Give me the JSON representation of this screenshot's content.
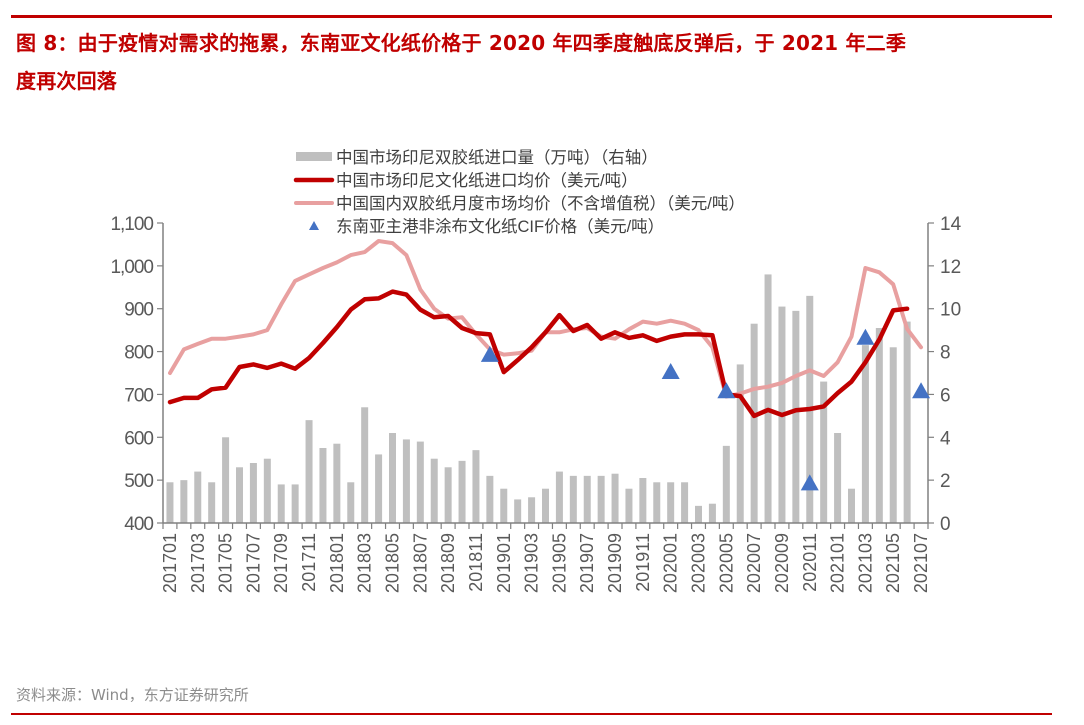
{
  "header": {
    "title_line1": "图 8：由于疫情对需求的拖累，东南亚文化纸价格于 2020 年四季度触底反弹后，于 2021 年二季",
    "title_line2": "度再次回落"
  },
  "footer": {
    "source": "资料来源：Wind，东方证券研究所"
  },
  "colors": {
    "accent": "#c00000",
    "bar": "#bfbfbf",
    "import_price_line": "#c00000",
    "domestic_price_line": "#e8a0a0",
    "cif_marker": "#4472c4",
    "axis": "#808080",
    "tick_text": "#595959"
  },
  "chart_data": {
    "type": "bar+line",
    "title": "",
    "xlabel": "",
    "ylabel_left": "美元/吨",
    "ylabel_right": "万吨",
    "ylim_left": [
      400,
      1100
    ],
    "ylim_right": [
      0,
      14
    ],
    "yticks_left": [
      "1,100",
      "1,000",
      "900",
      "800",
      "700",
      "600",
      "500",
      "400"
    ],
    "yticks_right": [
      "14",
      "12",
      "10",
      "8",
      "6",
      "4",
      "2",
      "0"
    ],
    "grid": false,
    "legend_position": "top-center",
    "x": [
      "201701",
      "201702",
      "201703",
      "201704",
      "201705",
      "201706",
      "201707",
      "201708",
      "201709",
      "201710",
      "201711",
      "201712",
      "201801",
      "201802",
      "201803",
      "201804",
      "201805",
      "201806",
      "201807",
      "201808",
      "201809",
      "201810",
      "201811",
      "201812",
      "201901",
      "201902",
      "201903",
      "201904",
      "201905",
      "201906",
      "201907",
      "201908",
      "201909",
      "201910",
      "201911",
      "201912",
      "202001",
      "202002",
      "202003",
      "202004",
      "202005",
      "202006",
      "202007",
      "202008",
      "202009",
      "202010",
      "202011",
      "202012",
      "202101",
      "202102",
      "202103",
      "202104",
      "202105",
      "202106",
      "202107"
    ],
    "xtick_labels": [
      "201701",
      "201703",
      "201705",
      "201707",
      "201709",
      "201711",
      "201801",
      "201803",
      "201805",
      "201807",
      "201809",
      "201811",
      "201901",
      "201903",
      "201905",
      "201907",
      "201909",
      "201911",
      "202001",
      "202003",
      "202005",
      "202007",
      "202009",
      "202011",
      "202101",
      "202103",
      "202105",
      "202107"
    ],
    "series": [
      {
        "name": "中国市场印尼双胶纸进口量（万吨）（右轴）",
        "type": "bar",
        "axis": "right",
        "values": [
          1.9,
          2.0,
          2.4,
          1.9,
          4.0,
          2.6,
          2.8,
          3.0,
          1.8,
          1.8,
          4.8,
          3.5,
          3.7,
          1.9,
          5.4,
          3.2,
          4.2,
          3.9,
          3.8,
          3.0,
          2.6,
          2.9,
          3.4,
          2.2,
          1.6,
          1.1,
          1.2,
          1.6,
          2.4,
          2.2,
          2.2,
          2.2,
          2.3,
          1.6,
          2.1,
          1.9,
          1.9,
          1.9,
          0.8,
          0.9,
          3.6,
          7.4,
          9.3,
          11.6,
          10.1,
          9.9,
          10.6,
          6.6,
          4.2,
          1.6,
          8.3,
          9.1,
          8.2,
          9.4,
          null
        ]
      },
      {
        "name": "中国市场印尼文化纸进口均价（美元/吨）",
        "type": "line",
        "axis": "left",
        "values": [
          682,
          692,
          692,
          712,
          716,
          764,
          770,
          762,
          772,
          760,
          785,
          820,
          857,
          898,
          922,
          924,
          940,
          933,
          898,
          880,
          883,
          855,
          843,
          840,
          752,
          780,
          810,
          845,
          885,
          848,
          862,
          830,
          845,
          832,
          838,
          825,
          835,
          840,
          840,
          838,
          700,
          696,
          650,
          664,
          652,
          663,
          666,
          672,
          703,
          730,
          775,
          828,
          896,
          900,
          null
        ]
      },
      {
        "name": "中国国内双胶纸月度市场均价（不含增值税）（美元/吨）",
        "type": "line",
        "axis": "left",
        "values": [
          750,
          805,
          818,
          830,
          830,
          835,
          840,
          850,
          910,
          965,
          980,
          995,
          1008,
          1025,
          1032,
          1058,
          1053,
          1025,
          945,
          900,
          877,
          880,
          840,
          805,
          793,
          796,
          802,
          845,
          845,
          852,
          855,
          835,
          830,
          852,
          870,
          865,
          872,
          865,
          850,
          810,
          695,
          702,
          713,
          718,
          727,
          743,
          756,
          743,
          775,
          835,
          995,
          985,
          957,
          853,
          810
        ]
      },
      {
        "name": "东南亚主港非涂布文化纸CIF价格（美元/吨）",
        "type": "scatter",
        "axis": "left",
        "points": [
          {
            "x": "201812",
            "y": 790
          },
          {
            "x": "202001",
            "y": 750
          },
          {
            "x": "202005",
            "y": 705
          },
          {
            "x": "202011",
            "y": 490
          },
          {
            "x": "202103",
            "y": 830
          },
          {
            "x": "202107",
            "y": 705
          }
        ]
      }
    ]
  },
  "legend": {
    "items": [
      {
        "label": "中国市场印尼双胶纸进口量（万吨）（右轴）",
        "kind": "bar"
      },
      {
        "label": "中国市场印尼文化纸进口均价（美元/吨）",
        "kind": "line-dark"
      },
      {
        "label": "中国国内双胶纸月度市场均价（不含增值税）（美元/吨）",
        "kind": "line-light"
      },
      {
        "label": "东南亚主港非涂布文化纸CIF价格（美元/吨）",
        "kind": "triangle"
      }
    ]
  }
}
